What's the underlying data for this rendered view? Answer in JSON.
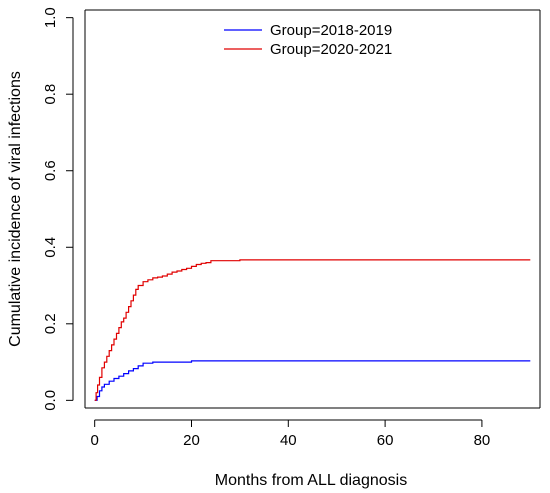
{
  "chart_data": {
    "type": "line",
    "title": "",
    "xlabel": "Months from ALL diagnosis",
    "ylabel": "Cumulative incidence of viral infections",
    "xlim": [
      -2,
      92
    ],
    "ylim": [
      -0.02,
      1.02
    ],
    "xticks": [
      0,
      20,
      40,
      60,
      80
    ],
    "xtick_labels": [
      "0",
      "20",
      "40",
      "60",
      "80"
    ],
    "yticks": [
      0.0,
      0.2,
      0.4,
      0.6,
      0.8,
      1.0
    ],
    "ytick_labels": [
      "0.0",
      "0.2",
      "0.4",
      "0.6",
      "0.8",
      "1.0"
    ],
    "legend": {
      "placement": "top-center"
    },
    "series": [
      {
        "name": "Group=2018-2019",
        "color": "#0000ff",
        "step": true,
        "x": [
          0,
          0.5,
          1,
          1.5,
          2,
          3,
          4,
          5,
          6,
          7,
          8,
          9,
          10,
          12,
          20,
          90
        ],
        "y": [
          0,
          0.01,
          0.025,
          0.035,
          0.042,
          0.05,
          0.057,
          0.063,
          0.07,
          0.077,
          0.083,
          0.09,
          0.097,
          0.1,
          0.103,
          0.103
        ]
      },
      {
        "name": "Group=2020-2021",
        "color": "#e00000",
        "step": true,
        "x": [
          0,
          0.3,
          0.6,
          1,
          1.5,
          2,
          2.5,
          3,
          3.5,
          4,
          4.5,
          5,
          5.5,
          6,
          6.5,
          7,
          7.5,
          8,
          8.5,
          9,
          10,
          11,
          12,
          13,
          14,
          15,
          16,
          17,
          18,
          19,
          20,
          21,
          22,
          23,
          24,
          30,
          90
        ],
        "y": [
          0,
          0.02,
          0.04,
          0.06,
          0.085,
          0.1,
          0.115,
          0.13,
          0.145,
          0.16,
          0.175,
          0.19,
          0.205,
          0.215,
          0.23,
          0.245,
          0.26,
          0.275,
          0.29,
          0.3,
          0.31,
          0.315,
          0.32,
          0.322,
          0.325,
          0.33,
          0.335,
          0.338,
          0.342,
          0.345,
          0.35,
          0.355,
          0.358,
          0.36,
          0.365,
          0.367,
          0.367
        ]
      }
    ]
  }
}
